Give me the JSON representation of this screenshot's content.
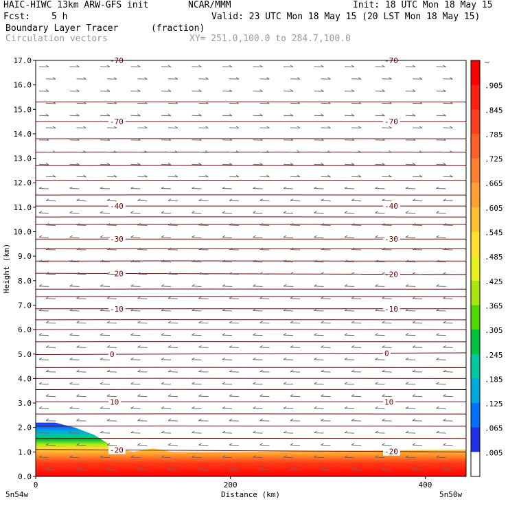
{
  "header": {
    "model": "HAIC-HIWC 13km ARW-GFS init",
    "org": "NCAR/MMM",
    "init": "Init: 18 UTC Mon 18 May 15",
    "fcst_label": "Fcst:",
    "fcst_value": "5 h",
    "valid": "Valid: 23 UTC Mon 18 May 15 (20 LST Mon 18 May 15)",
    "field1": "Boundary Layer Tracer",
    "field1_units": "(fraction)",
    "field2": "Circulation vectors",
    "xy_range": "XY= 251.0,100.0 to 284.7,100.0"
  },
  "chart_data": {
    "type": "heatmap",
    "xlabel": "Distance (km)",
    "ylabel": "Height (km)",
    "xlim": [
      0,
      442
    ],
    "ylim": [
      0.0,
      17.0
    ],
    "x_ticks": [
      "0",
      "200",
      "400"
    ],
    "y_ticks": [
      "0.0",
      "1.0",
      "2.0",
      "3.0",
      "4.0",
      "5.0",
      "6.0",
      "7.0",
      "8.0",
      "9.0",
      "10.0",
      "11.0",
      "12.0",
      "13.0",
      "14.0",
      "15.0",
      "16.0",
      "17.0"
    ],
    "corner_left": "5n54w",
    "corner_right": "5n50w",
    "colorbar": {
      "labels": [
        "–",
        ".905",
        ".845",
        ".785",
        ".725",
        ".665",
        ".605",
        ".545",
        ".485",
        ".425",
        ".365",
        ".305",
        ".245",
        ".185",
        ".125",
        ".065",
        ".005"
      ],
      "colors": [
        "#ff0000",
        "#ff2010",
        "#ff4020",
        "#ff6028",
        "#ff8030",
        "#ffa030",
        "#ffc030",
        "#ffe030",
        "#e8f020",
        "#a8e810",
        "#50d800",
        "#00c040",
        "#00c8a0",
        "#00a8e0",
        "#0070ff",
        "#2030e8",
        "#ffffff"
      ]
    },
    "tracer_region": {
      "top_height_km": [
        [
          0,
          2.2
        ],
        [
          20,
          2.2
        ],
        [
          40,
          2.0
        ],
        [
          60,
          1.7
        ],
        [
          80,
          1.2
        ],
        [
          100,
          1.0
        ],
        [
          120,
          1.15
        ],
        [
          140,
          1.0
        ],
        [
          200,
          1.0
        ],
        [
          300,
          1.05
        ],
        [
          442,
          1.1
        ]
      ]
    },
    "temperature_contours": [
      {
        "label": "-20",
        "heights": [
          1.1,
          1.0
        ]
      },
      {
        "label": "10",
        "heights": [
          3.05,
          3.05
        ]
      },
      {
        "label": "0",
        "heights": [
          4.98,
          5.05
        ]
      },
      {
        "label": "-10",
        "heights": [
          6.85,
          6.85
        ]
      },
      {
        "label": "-20",
        "heights": [
          8.3,
          8.25
        ]
      },
      {
        "label": "-30",
        "heights": [
          9.7,
          9.7
        ]
      },
      {
        "label": "-40",
        "heights": [
          11.05,
          11.05
        ]
      },
      {
        "label": "-70",
        "heights": [
          14.5,
          14.5
        ]
      },
      {
        "label": "-70",
        "heights": [
          17.0,
          17.0
        ]
      }
    ],
    "extra_contour_heights": [
      1.55,
      2.05,
      2.55,
      3.55,
      4.0,
      4.45,
      5.5,
      6.0,
      6.4,
      7.35,
      7.65,
      8.8,
      9.3,
      10.3,
      10.6,
      11.5,
      12.1,
      12.7,
      13.25,
      13.8,
      15.3
    ],
    "vectors": {
      "upper_direction": "east",
      "lower_direction": "west",
      "transition_height_km": 11.8
    }
  }
}
